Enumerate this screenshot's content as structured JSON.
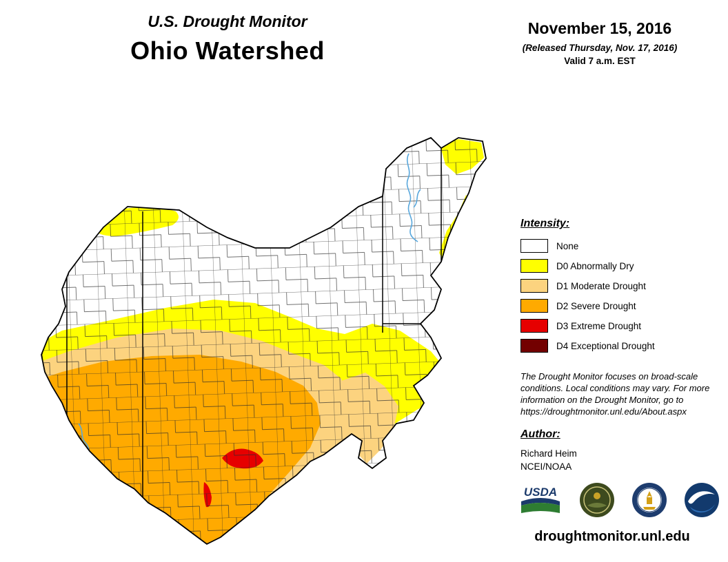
{
  "header": {
    "title_line1": "U.S. Drought Monitor",
    "title_line2": "Ohio Watershed",
    "date": "November 15, 2016",
    "released": "(Released Thursday, Nov. 17, 2016)",
    "valid": "Valid 7 a.m. EST"
  },
  "legend": {
    "heading": "Intensity:",
    "items": [
      {
        "code": "none",
        "label": "None",
        "color": "#FFFFFF"
      },
      {
        "code": "d0",
        "label": "D0 Abnormally Dry",
        "color": "#FFFF00"
      },
      {
        "code": "d1",
        "label": "D1 Moderate Drought",
        "color": "#FCD37F"
      },
      {
        "code": "d2",
        "label": "D2 Severe Drought",
        "color": "#FFAA00"
      },
      {
        "code": "d3",
        "label": "D3 Extreme Drought",
        "color": "#E60000"
      },
      {
        "code": "d4",
        "label": "D4 Exceptional Drought",
        "color": "#730000"
      }
    ]
  },
  "notes": {
    "disclaimer": "The Drought Monitor focuses on broad-scale conditions. Local conditions may vary. For more information on the Drought Monitor, go to https://droughtmonitor.unl.edu/About.aspx"
  },
  "author": {
    "heading": "Author:",
    "name": "Richard Heim",
    "org": "NCEI/NOAA"
  },
  "logos": {
    "usda_text": "USDA",
    "items": [
      "usda-logo",
      "ndmc-logo",
      "commerce-logo",
      "noaa-logo"
    ]
  },
  "footer": {
    "url": "droughtmonitor.unl.edu"
  },
  "map": {
    "river_color": "#58a7dc",
    "border_color": "#000000"
  }
}
